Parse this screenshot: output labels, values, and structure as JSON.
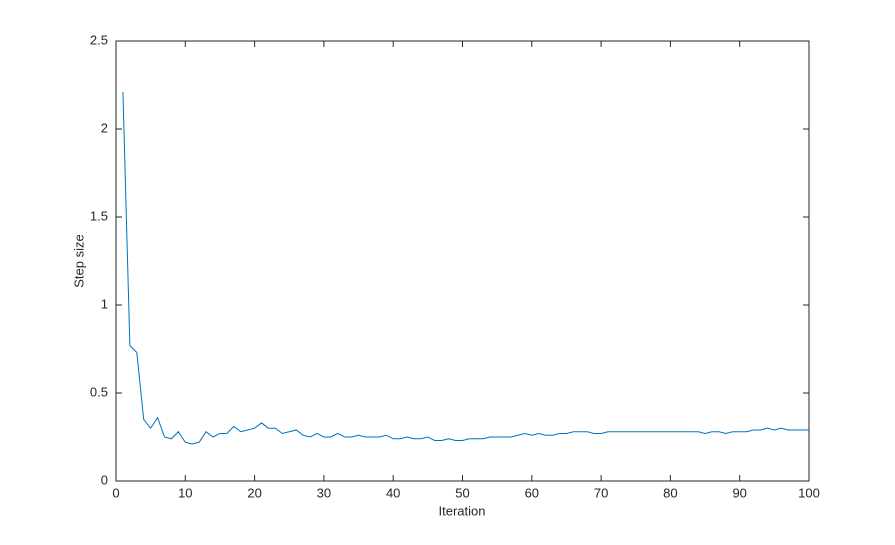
{
  "chart_data": {
    "type": "line",
    "x_label": "Iteration",
    "y_label": "Step size",
    "x": [
      1,
      2,
      3,
      4,
      5,
      6,
      7,
      8,
      9,
      10,
      11,
      12,
      13,
      14,
      15,
      16,
      17,
      18,
      19,
      20,
      21,
      22,
      23,
      24,
      25,
      26,
      27,
      28,
      29,
      30,
      31,
      32,
      33,
      34,
      35,
      36,
      37,
      38,
      39,
      40,
      41,
      42,
      43,
      44,
      45,
      46,
      47,
      48,
      49,
      50,
      51,
      52,
      53,
      54,
      55,
      56,
      57,
      58,
      59,
      60,
      61,
      62,
      63,
      64,
      65,
      66,
      67,
      68,
      69,
      70,
      71,
      72,
      73,
      74,
      75,
      76,
      77,
      78,
      79,
      80,
      81,
      82,
      83,
      84,
      85,
      86,
      87,
      88,
      89,
      90,
      91,
      92,
      93,
      94,
      95,
      96,
      97,
      98,
      99,
      100
    ],
    "values": [
      2.21,
      0.77,
      0.73,
      0.35,
      0.3,
      0.36,
      0.25,
      0.24,
      0.28,
      0.22,
      0.21,
      0.22,
      0.28,
      0.25,
      0.27,
      0.27,
      0.31,
      0.28,
      0.29,
      0.3,
      0.33,
      0.3,
      0.3,
      0.27,
      0.28,
      0.29,
      0.26,
      0.25,
      0.27,
      0.25,
      0.25,
      0.27,
      0.25,
      0.25,
      0.26,
      0.25,
      0.25,
      0.25,
      0.26,
      0.24,
      0.24,
      0.25,
      0.24,
      0.24,
      0.25,
      0.23,
      0.23,
      0.24,
      0.23,
      0.23,
      0.24,
      0.24,
      0.24,
      0.25,
      0.25,
      0.25,
      0.25,
      0.26,
      0.27,
      0.26,
      0.27,
      0.26,
      0.26,
      0.27,
      0.27,
      0.28,
      0.28,
      0.28,
      0.27,
      0.27,
      0.28,
      0.28,
      0.28,
      0.28,
      0.28,
      0.28,
      0.28,
      0.28,
      0.28,
      0.28,
      0.28,
      0.28,
      0.28,
      0.28,
      0.27,
      0.28,
      0.28,
      0.27,
      0.28,
      0.28,
      0.28,
      0.29,
      0.29,
      0.3,
      0.29,
      0.3,
      0.29,
      0.29,
      0.29,
      0.29
    ],
    "color": "#0072bd",
    "xlim": [
      0,
      100
    ],
    "xticks": [
      0,
      10,
      20,
      30,
      40,
      50,
      60,
      70,
      80,
      90,
      100
    ],
    "ylim": [
      0,
      2.5
    ],
    "yticks": [
      0,
      0.5,
      1,
      1.5,
      2,
      2.5
    ],
    "grid": false
  }
}
